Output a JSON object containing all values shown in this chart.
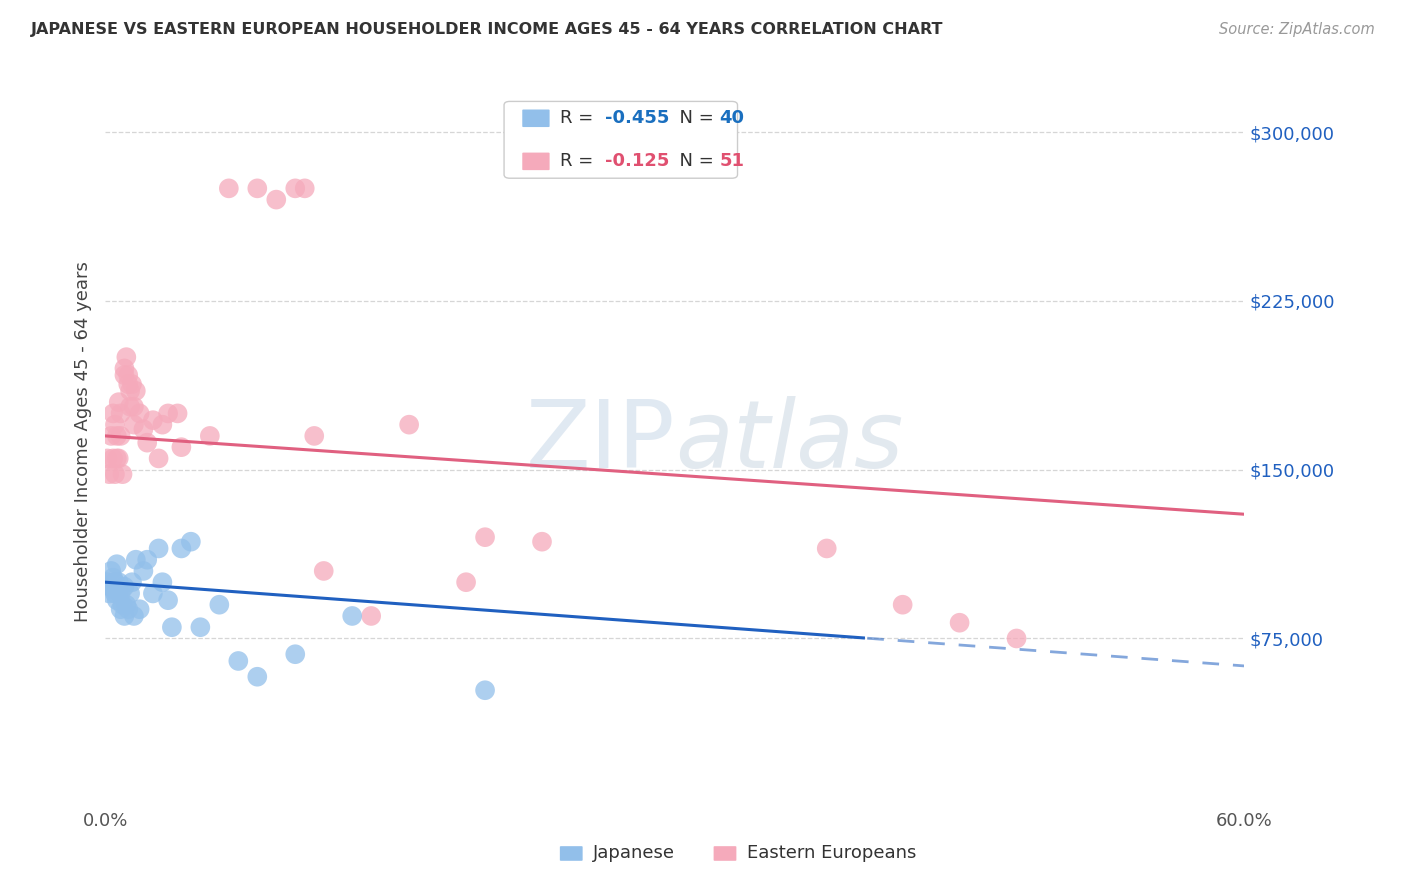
{
  "title": "JAPANESE VS EASTERN EUROPEAN HOUSEHOLDER INCOME AGES 45 - 64 YEARS CORRELATION CHART",
  "source": "Source: ZipAtlas.com",
  "ylabel": "Householder Income Ages 45 - 64 years",
  "xlim": [
    0.0,
    0.6
  ],
  "ylim": [
    0,
    325000
  ],
  "ytick_vals": [
    75000,
    150000,
    225000,
    300000
  ],
  "ytick_labels": [
    "$75,000",
    "$150,000",
    "$225,000",
    "$300,000"
  ],
  "xtick_vals": [
    0.0,
    0.1,
    0.2,
    0.3,
    0.4,
    0.5,
    0.6
  ],
  "xtick_labels": [
    "0.0%",
    "",
    "",
    "",
    "",
    "",
    "60.0%"
  ],
  "japanese_color": "#92BFEA",
  "eastern_color": "#F5AABB",
  "japanese_line_color": "#2060C0",
  "eastern_line_color": "#E06080",
  "watermark": "ZIPatlas",
  "background_color": "#FFFFFF",
  "jp_x": [
    0.001,
    0.002,
    0.003,
    0.003,
    0.004,
    0.004,
    0.005,
    0.005,
    0.006,
    0.006,
    0.007,
    0.007,
    0.008,
    0.008,
    0.009,
    0.01,
    0.01,
    0.011,
    0.012,
    0.013,
    0.014,
    0.015,
    0.016,
    0.018,
    0.02,
    0.022,
    0.025,
    0.028,
    0.03,
    0.033,
    0.035,
    0.04,
    0.045,
    0.05,
    0.06,
    0.07,
    0.08,
    0.1,
    0.13,
    0.2
  ],
  "jp_y": [
    100000,
    95000,
    105000,
    98000,
    102000,
    97000,
    100000,
    95000,
    108000,
    92000,
    96000,
    100000,
    88000,
    95000,
    90000,
    98000,
    85000,
    90000,
    88000,
    95000,
    100000,
    85000,
    110000,
    88000,
    105000,
    110000,
    95000,
    115000,
    100000,
    92000,
    80000,
    115000,
    118000,
    80000,
    90000,
    65000,
    58000,
    68000,
    85000,
    52000
  ],
  "ee_x": [
    0.001,
    0.002,
    0.003,
    0.004,
    0.004,
    0.005,
    0.005,
    0.006,
    0.006,
    0.007,
    0.007,
    0.008,
    0.008,
    0.009,
    0.01,
    0.01,
    0.011,
    0.012,
    0.012,
    0.013,
    0.013,
    0.014,
    0.015,
    0.015,
    0.016,
    0.018,
    0.02,
    0.022,
    0.025,
    0.028,
    0.03,
    0.033,
    0.038,
    0.04,
    0.055,
    0.065,
    0.08,
    0.09,
    0.1,
    0.105,
    0.11,
    0.115,
    0.14,
    0.16,
    0.19,
    0.2,
    0.23,
    0.38,
    0.42,
    0.45,
    0.48
  ],
  "ee_y": [
    155000,
    148000,
    165000,
    175000,
    155000,
    148000,
    170000,
    155000,
    165000,
    180000,
    155000,
    175000,
    165000,
    148000,
    192000,
    195000,
    200000,
    188000,
    192000,
    178000,
    185000,
    188000,
    178000,
    170000,
    185000,
    175000,
    168000,
    162000,
    172000,
    155000,
    170000,
    175000,
    175000,
    160000,
    165000,
    275000,
    275000,
    270000,
    275000,
    275000,
    165000,
    105000,
    85000,
    170000,
    100000,
    120000,
    118000,
    115000,
    90000,
    82000,
    75000
  ],
  "jp_line_x0": 0.0,
  "jp_line_x_solid_end": 0.4,
  "jp_line_x1": 0.6,
  "ee_line_x0": 0.0,
  "ee_line_x1": 0.6
}
